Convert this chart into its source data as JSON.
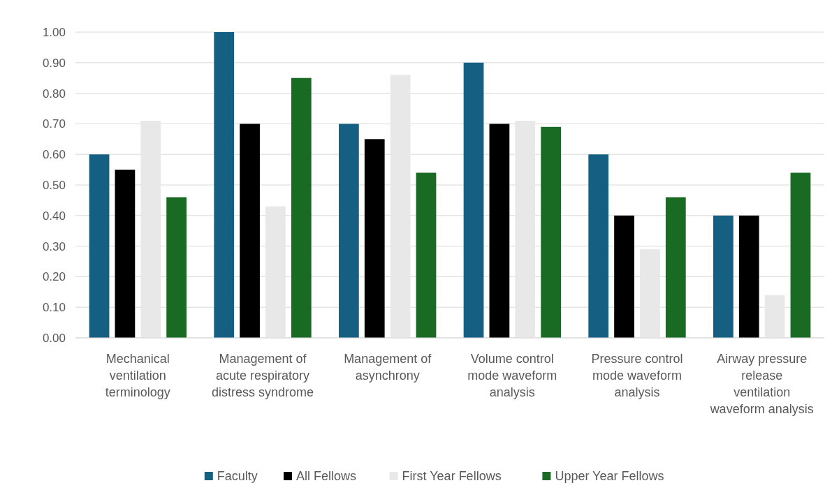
{
  "chart_data": {
    "type": "bar",
    "categories": [
      "Mechanical ventilation terminology",
      "Management of acute respiratory distress syndrome",
      "Management of asynchrony",
      "Volume control mode waveform analysis",
      "Pressure control mode waveform analysis",
      "Airway pressure release ventilation waveform analysis"
    ],
    "series": [
      {
        "name": "Faculty",
        "color": "#156082",
        "values": [
          0.6,
          1.0,
          0.7,
          0.9,
          0.6,
          0.4
        ]
      },
      {
        "name": "All Fellows",
        "color": "#000000",
        "values": [
          0.55,
          0.7,
          0.65,
          0.7,
          0.4,
          0.4
        ]
      },
      {
        "name": "First Year Fellows",
        "color": "#e8e8e8",
        "values": [
          0.71,
          0.43,
          0.86,
          0.71,
          0.29,
          0.14
        ]
      },
      {
        "name": "Upper Year Fellows",
        "color": "#196b24",
        "values": [
          0.46,
          0.85,
          0.54,
          0.69,
          0.46,
          0.54
        ]
      }
    ],
    "ylim": [
      0,
      1
    ],
    "yticks": [
      {
        "value": 0,
        "label": "0.00"
      },
      {
        "value": 0.1,
        "label": "0.10"
      },
      {
        "value": 0.2,
        "label": "0.20"
      },
      {
        "value": 0.3,
        "label": "0.30"
      },
      {
        "value": 0.4,
        "label": "0.40"
      },
      {
        "value": 0.5,
        "label": "0.50"
      },
      {
        "value": 0.6,
        "label": "0.60"
      },
      {
        "value": 0.7,
        "label": "0.70"
      },
      {
        "value": 0.8,
        "label": "0.80"
      },
      {
        "value": 0.9,
        "label": "0.90"
      },
      {
        "value": 1,
        "label": "1.00"
      }
    ],
    "grid": "y",
    "legend": "bottom"
  }
}
